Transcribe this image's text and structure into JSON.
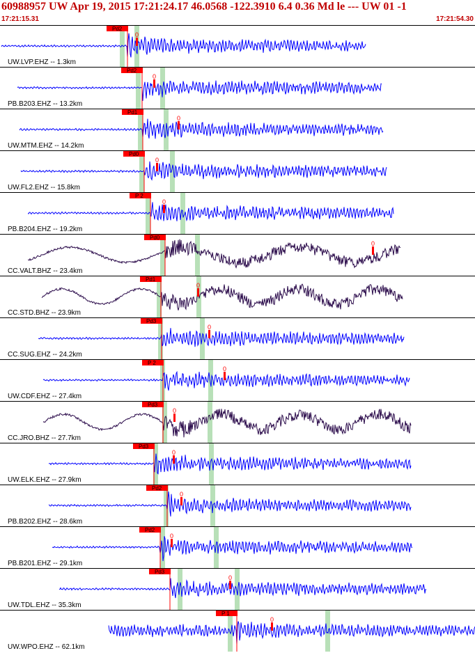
{
  "header": {
    "title": "60988957 UW Apr 19, 2015 17:21:24.17    46.0568 -122.3910  6.4 0.36 Md le --- UW 01   -1",
    "time_start": "17:21:15.31",
    "time_end": "17:21:54.30"
  },
  "colors": {
    "vertical_trace": "#0000ff",
    "broadband_trace": "#2a0a4a",
    "pick_flag": "#ff0000",
    "phase_window": "#b8e0b8",
    "text": "#000000",
    "header_text": "#c00000"
  },
  "traces": [
    {
      "label": "UW.LVP.EHZ -- 1.3km",
      "pick": "Pd2"
    },
    {
      "label": "PB.B203.EHZ -- 13.2km",
      "pick": "Pd2"
    },
    {
      "label": "UW.MTM.EHZ -- 14.2km",
      "pick": "Pd1"
    },
    {
      "label": "UW.FL2.EHZ -- 15.8km",
      "pick": "Pd0"
    },
    {
      "label": "PB.B204.EHZ -- 19.2km",
      "pick": "P 2"
    },
    {
      "label": "CC.VALT.BHZ -- 23.4km",
      "pick": "Pd0"
    },
    {
      "label": "CC.STD.BHZ -- 23.9km",
      "pick": "Pd1"
    },
    {
      "label": "CC.SUG.EHZ -- 24.2km",
      "pick": "Pd3"
    },
    {
      "label": "UW.CDF.EHZ -- 27.4km",
      "pick": "P 2"
    },
    {
      "label": "CC.JRO.BHZ -- 27.7km",
      "pick": "Pd3"
    },
    {
      "label": "UW.ELK.EHZ -- 27.9km",
      "pick": "Pd3"
    },
    {
      "label": "PB.B202.EHZ -- 28.6km",
      "pick": "Pd2"
    },
    {
      "label": "PB.B201.EHZ -- 29.1km",
      "pick": "Pd2"
    },
    {
      "label": "UW.TDL.EHZ -- 35.3km",
      "pick": "Pd3"
    },
    {
      "label": "UW.WPO.EHZ -- 62.1km",
      "pick": "P 1"
    }
  ],
  "annotations": {
    "s_marker": "0"
  }
}
